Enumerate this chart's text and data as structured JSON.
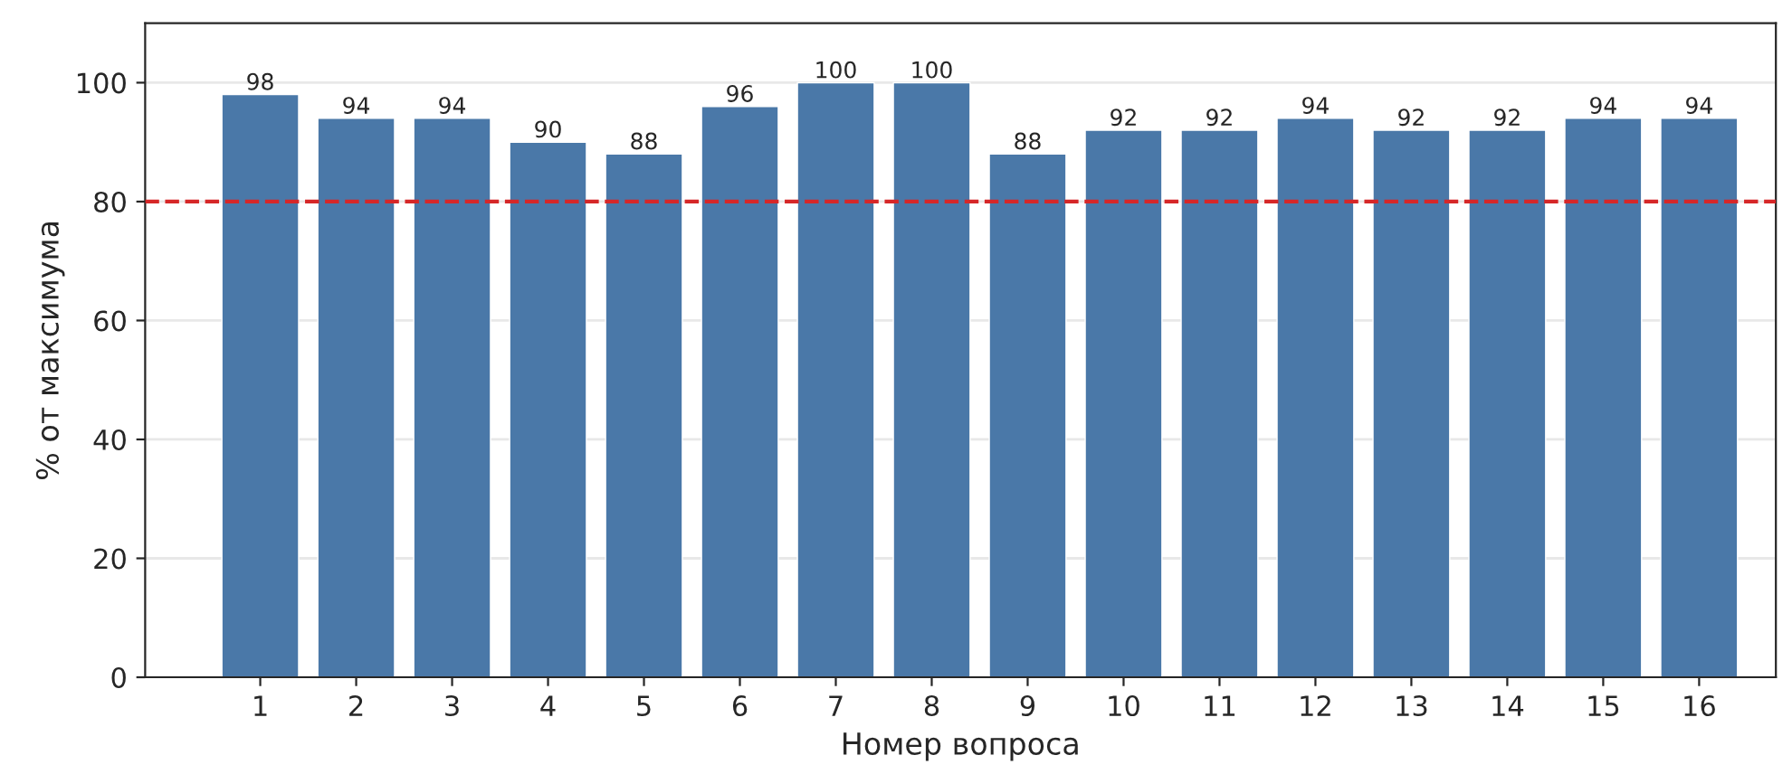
{
  "chart_data": {
    "type": "bar",
    "xlabel": "Номер вопроса",
    "ylabel": "% от максимума",
    "categories": [
      "1",
      "2",
      "3",
      "4",
      "5",
      "6",
      "7",
      "8",
      "9",
      "10",
      "11",
      "12",
      "13",
      "14",
      "15",
      "16"
    ],
    "values": [
      98,
      94,
      94,
      90,
      88,
      96,
      100,
      100,
      88,
      92,
      92,
      94,
      92,
      92,
      94,
      94
    ],
    "color": "#4a78a8",
    "data_labels": true,
    "ylim": [
      0,
      110
    ],
    "yticks": [
      0,
      20,
      40,
      60,
      80,
      100
    ],
    "grid": "y",
    "ref_lines": [
      {
        "axis": "y",
        "value": 80,
        "color": "#d62728",
        "line_style": "dashed"
      }
    ]
  }
}
